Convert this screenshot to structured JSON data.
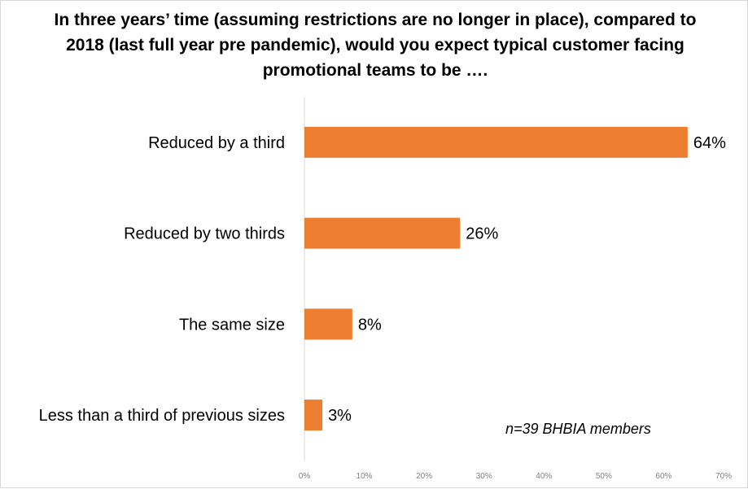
{
  "chart_data": {
    "type": "bar",
    "orientation": "horizontal",
    "title": "In three years’ time (assuming restrictions are no longer in place), compared to 2018 (last full year pre pandemic), would you expect typical customer facing promotional teams to be ….",
    "categories": [
      "Reduced by a third",
      "Reduced by two thirds",
      "The same size",
      "Less than a third of previous sizes"
    ],
    "values": [
      64,
      26,
      8,
      3
    ],
    "data_labels": [
      "64%",
      "26%",
      "8%",
      "3%"
    ],
    "xlim": [
      0,
      70
    ],
    "ticks": [
      0,
      10,
      20,
      30,
      40,
      50,
      60,
      70
    ],
    "tick_labels": [
      "0%",
      "10%",
      "20%",
      "30%",
      "40%",
      "50%",
      "60%",
      "70%"
    ],
    "grid": false,
    "bar_color": "#ed7d31",
    "annotation": "n=39 BHBIA members"
  }
}
